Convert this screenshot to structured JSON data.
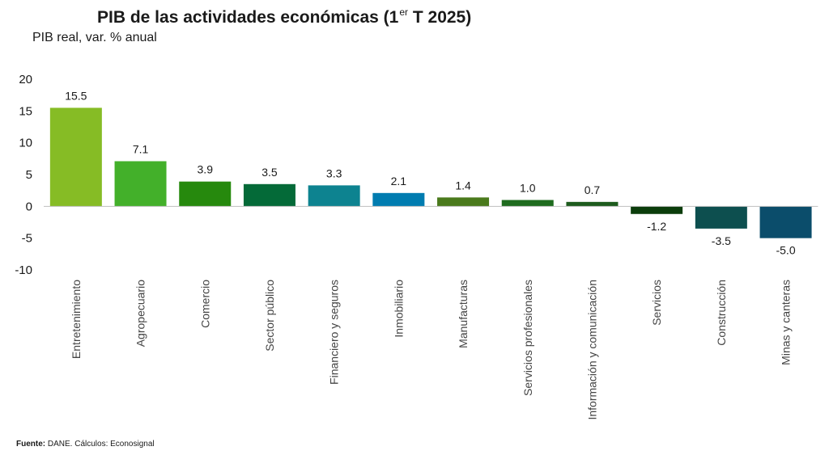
{
  "title": {
    "main": "PIB de las actividades económicas (1",
    "sup": "er",
    "tail": " T 2025)"
  },
  "subtitle": "PIB real, var. % anual",
  "source": {
    "label": "Fuente:",
    "text": " DANE. Cálculos: Econosignal"
  },
  "chart_data": {
    "type": "bar",
    "title": "PIB de las actividades económicas (1er T 2025)",
    "ylabel": "PIB real, var. % anual",
    "xlabel": "",
    "ylim": [
      -10,
      20
    ],
    "yticks": [
      20,
      15,
      10,
      5,
      0,
      -5,
      -10
    ],
    "categories": [
      "Entretenimiento",
      "Agropecuario",
      "Comercio",
      "Sector público",
      "Financiero y seguros",
      "Inmobiliario",
      "Manufacturas",
      "Servicios profesionales",
      "Información y comunicación",
      "Servicios",
      "Construcción",
      "Minas y canteras"
    ],
    "values": [
      15.5,
      7.1,
      3.9,
      3.5,
      3.3,
      2.1,
      1.4,
      1.0,
      0.7,
      -1.2,
      -3.5,
      -5.0
    ],
    "value_labels": [
      "15.5",
      "7.1",
      "3.9",
      "3.5",
      "3.3",
      "2.1",
      "1.4",
      "1.0",
      "0.7",
      "-1.2",
      "-3.5",
      "-5.0"
    ],
    "colors": [
      "#86bc25",
      "#43b02a",
      "#26890d",
      "#046a38",
      "#0d8390",
      "#007cb0",
      "#4a7a1c",
      "#1e6b1e",
      "#1d5b1d",
      "#0b3d0b",
      "#0d4f4f",
      "#0b4d6b"
    ],
    "grid": false,
    "legend": "none"
  }
}
